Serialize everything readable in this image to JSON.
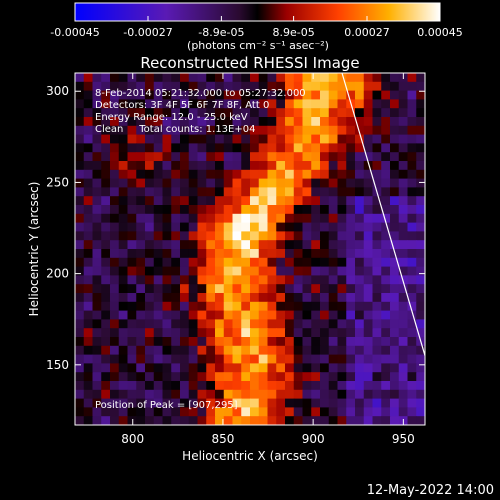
{
  "chart_data": {
    "type": "heatmap",
    "title": "Reconstructed RHESSI Image",
    "xlabel": "Heliocentric X (arcsec)",
    "ylabel": "Heliocentric Y (arcsec)",
    "xlim": [
      768,
      962
    ],
    "ylim": [
      117,
      310
    ],
    "x_ticks": [
      800,
      850,
      900,
      950
    ],
    "y_ticks": [
      150,
      200,
      250,
      300
    ],
    "colorbar": {
      "range": [
        -0.00045,
        0.00045
      ],
      "ticks": [
        "-0.00045",
        "-0.00027",
        "-8.9e-05",
        "8.9e-05",
        "0.00027",
        "0.00045"
      ],
      "tick_values": [
        -0.00045,
        -0.00027,
        -8.9e-05,
        8.9e-05,
        0.00027,
        0.00045
      ],
      "label": "(photons cm⁻² s⁻¹ asec⁻²)",
      "colormap": [
        "#0000ff",
        "#5a1ab4",
        "#000000",
        "#c80000",
        "#ff6a00",
        "#ffe680",
        "#ffffff"
      ]
    },
    "info": {
      "time": "8-Feb-2014 05:21:32.000 to 05:27:32.000",
      "detectors": "Detectors: 3F 4F 5F 6F 7F 8F, Att 0",
      "energy": "Energy Range: 12.0 - 25.0 keV",
      "clean": "Clean     Total counts: 1.13E+04",
      "peak": "Position of Peak = [907,295]"
    },
    "peak": [
      907,
      295
    ],
    "limb": [
      [
        916,
        310
      ],
      [
        962,
        155
      ]
    ],
    "grid": false
  },
  "footer": {
    "timestamp": "12-May-2022 14:00"
  }
}
